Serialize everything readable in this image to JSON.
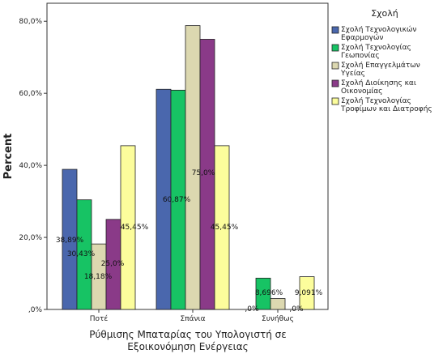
{
  "chart_data": {
    "type": "bar",
    "categories": [
      "Ποτέ",
      "Σπάνια",
      "Συνήθως"
    ],
    "series": [
      {
        "name": "Σχολή Τεχνολογικών Εφαρμογών",
        "values": [
          38.89,
          61.11,
          0.0
        ],
        "labels": [
          "38,89%",
          "",
          ",0%"
        ],
        "color": "#4a67ad"
      },
      {
        "name": "Σχολή Τεχνολογίας Γεωπονίας",
        "values": [
          30.43,
          60.87,
          8.696
        ],
        "labels": [
          "30,43%",
          "60,87%",
          "8,696%"
        ],
        "color": "#17c364"
      },
      {
        "name": "Σχολή Επαγγελμάτων Υγείας",
        "values": [
          18.18,
          78.79,
          3.03
        ],
        "labels": [
          "18,18%",
          "",
          ""
        ],
        "color": "#dcd8b0"
      },
      {
        "name": "Σχολή Διοίκησης και Οικονομίας",
        "values": [
          25.0,
          75.0,
          0.0
        ],
        "labels": [
          "25,0%",
          "75,0%",
          ",0%"
        ],
        "color": "#8a3a88"
      },
      {
        "name": "Σχολή Τεχνολογίας Τροφίμων και Διατροφής",
        "values": [
          45.45,
          45.45,
          9.091
        ],
        "labels": [
          "45,45%",
          "45,45%",
          "9,091%"
        ],
        "color": "#fcfd9c"
      }
    ],
    "xlabel": "Ρύθμισης Μπαταρίας του Υπολογιστή σε Εξοικονόμηση Ενέργειας",
    "ylabel": "Percent",
    "ylim": [
      0,
      85
    ],
    "yticks": [
      {
        "value": 0,
        "label": ",0%"
      },
      {
        "value": 20,
        "label": "20,0%"
      },
      {
        "value": 40,
        "label": "40,0%"
      },
      {
        "value": 60,
        "label": "60,0%"
      },
      {
        "value": 80,
        "label": "80,0%"
      }
    ],
    "legend_title": "Σχολή",
    "legend_position": "right",
    "grid": false
  }
}
